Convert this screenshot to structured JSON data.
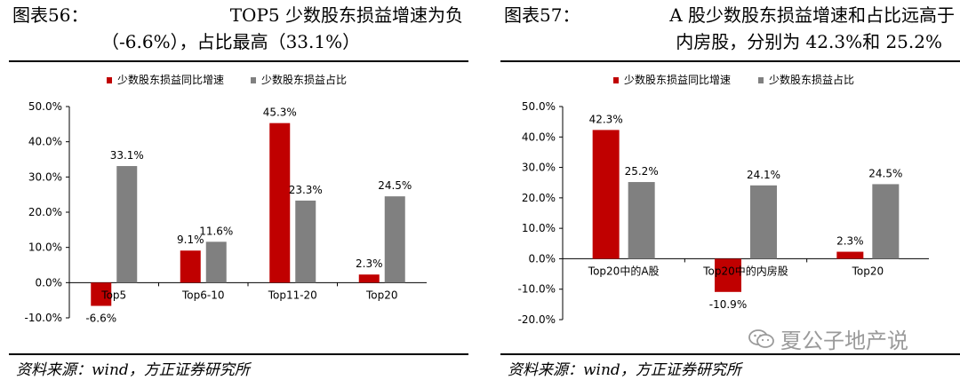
{
  "figures": [
    {
      "title_line1_left": "图表56：",
      "title_line1_right": "TOP5 少数股东损益增速为负",
      "title_line2": "（-6.6%），占比最高（33.1%）",
      "source": "资料来源：wind，方正证券研究所"
    },
    {
      "title_line1_left": "图表57：",
      "title_line1_right": "A 股少数股东损益增速和占比远高于",
      "title_line2": "内房股，分别为 42.3%和 25.2%",
      "source": "资料来源：wind，方正证券研究所"
    }
  ],
  "watermark": "夏公子地产说",
  "colors": {
    "growth": "#c00000",
    "share": "#808080"
  },
  "chart_data": [
    {
      "type": "bar",
      "categories": [
        "Top5",
        "Top6-10",
        "Top11-20",
        "Top20"
      ],
      "series": [
        {
          "name": "少数股东损益同比增速",
          "values": [
            -6.6,
            9.1,
            45.3,
            2.3
          ]
        },
        {
          "name": "少数股东损益占比",
          "values": [
            33.1,
            11.6,
            23.3,
            24.5
          ]
        }
      ],
      "ylim": [
        -10,
        50
      ],
      "yticks": [
        "-10.0%",
        "0.0%",
        "10.0%",
        "20.0%",
        "30.0%",
        "40.0%",
        "50.0%"
      ],
      "value_labels": [
        [
          "-6.6%",
          "9.1%",
          "45.3%",
          "2.3%"
        ],
        [
          "33.1%",
          "11.6%",
          "23.3%",
          "24.5%"
        ]
      ],
      "legend": "top",
      "grid": false
    },
    {
      "type": "bar",
      "categories": [
        "Top20中的A股",
        "Top20中的内房股",
        "Top20"
      ],
      "series": [
        {
          "name": "少数股东损益同比增速",
          "values": [
            42.3,
            -10.9,
            2.3
          ]
        },
        {
          "name": "少数股东损益占比",
          "values": [
            25.2,
            24.1,
            24.5
          ]
        }
      ],
      "ylim": [
        -20,
        50
      ],
      "yticks": [
        "-20.0%",
        "-10.0%",
        "0.0%",
        "10.0%",
        "20.0%",
        "30.0%",
        "40.0%",
        "50.0%"
      ],
      "value_labels": [
        [
          "42.3%",
          "-10.9%",
          "2.3%"
        ],
        [
          "25.2%",
          "24.1%",
          "24.5%"
        ]
      ],
      "legend": "top",
      "grid": false
    }
  ]
}
